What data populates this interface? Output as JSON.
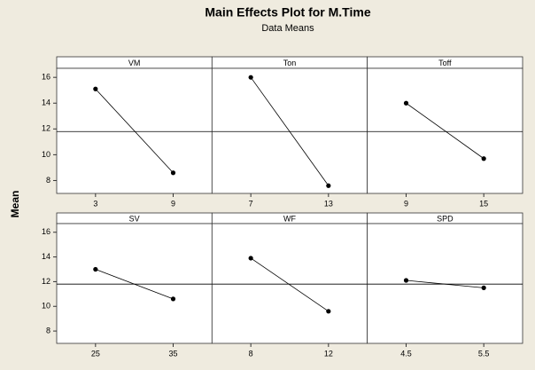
{
  "title": "Main Effects Plot for M.Time",
  "subtitle": "Data Means",
  "y_label": "Mean",
  "ylim": [
    7,
    16.7
  ],
  "yticks": [
    8,
    10,
    12,
    14,
    16
  ],
  "reference_line": 11.8,
  "color": "#000000",
  "chart_data": [
    {
      "type": "line",
      "title": "VM",
      "categories": [
        "3",
        "9"
      ],
      "values": [
        15.1,
        8.6
      ]
    },
    {
      "type": "line",
      "title": "Ton",
      "categories": [
        "7",
        "13"
      ],
      "values": [
        16.0,
        7.6
      ]
    },
    {
      "type": "line",
      "title": "Toff",
      "categories": [
        "9",
        "15"
      ],
      "values": [
        14.0,
        9.7
      ]
    },
    {
      "type": "line",
      "title": "SV",
      "categories": [
        "25",
        "35"
      ],
      "values": [
        13.0,
        10.6
      ]
    },
    {
      "type": "line",
      "title": "WF",
      "categories": [
        "8",
        "12"
      ],
      "values": [
        13.9,
        9.6
      ]
    },
    {
      "type": "line",
      "title": "SPD",
      "categories": [
        "4.5",
        "5.5"
      ],
      "values": [
        12.1,
        11.5
      ]
    }
  ]
}
